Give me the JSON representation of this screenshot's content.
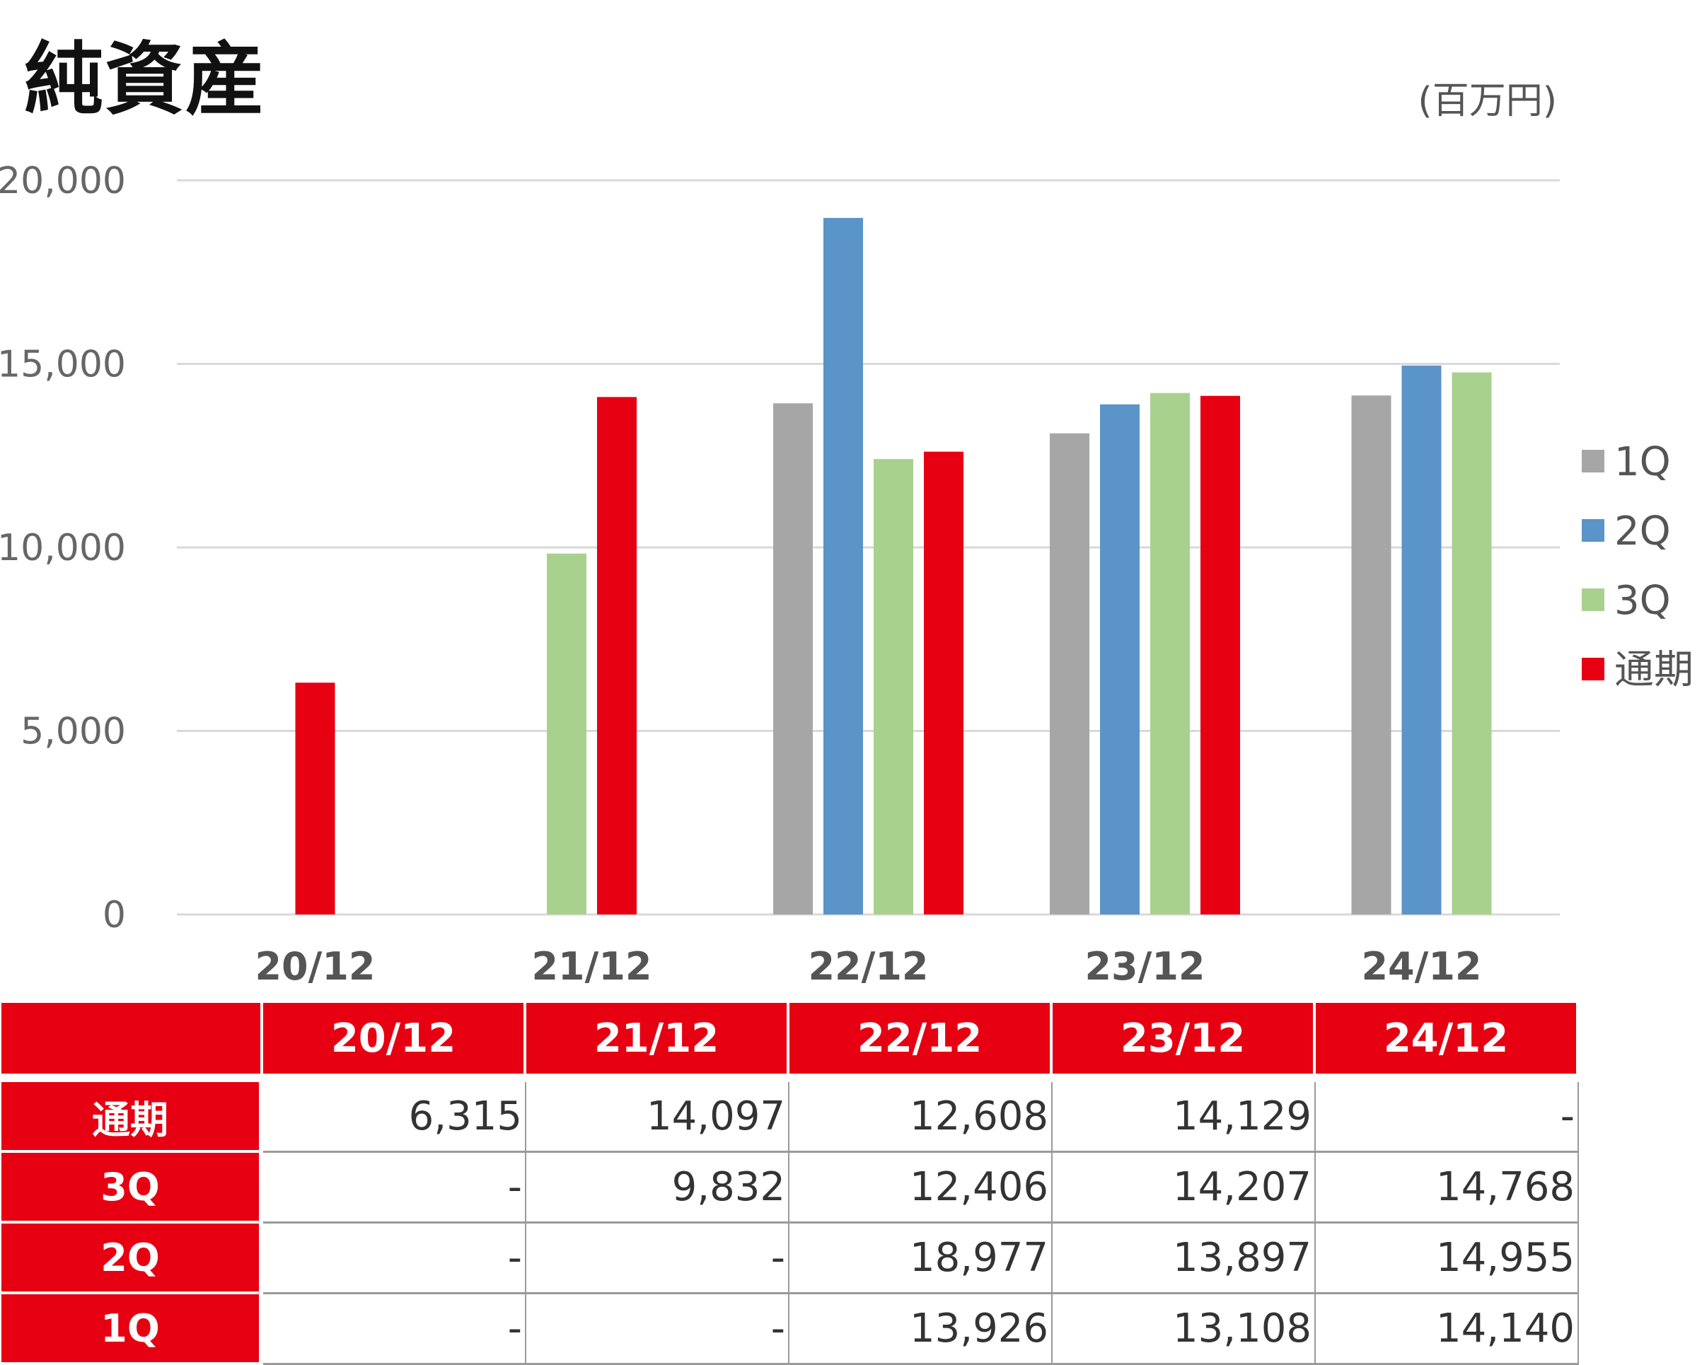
{
  "title": "純資産",
  "unit": "(百万円)",
  "chart_data": {
    "type": "bar",
    "title": "純資産",
    "unit": "(百万円)",
    "categories": [
      "20/12",
      "21/12",
      "22/12",
      "23/12",
      "24/12"
    ],
    "series": [
      {
        "name": "1Q",
        "color": "#a6a6a6",
        "values": [
          null,
          null,
          13926,
          13108,
          14140
        ]
      },
      {
        "name": "2Q",
        "color": "#5b94c8",
        "values": [
          null,
          null,
          18977,
          13897,
          14955
        ]
      },
      {
        "name": "3Q",
        "color": "#a9d18e",
        "values": [
          null,
          9832,
          12406,
          14207,
          14768
        ]
      },
      {
        "name": "通期",
        "color": "#e60012",
        "values": [
          6315,
          14097,
          12608,
          14129,
          null
        ]
      }
    ],
    "y_ticks": [
      "0",
      "5,000",
      "10,000",
      "15,000",
      "20,000"
    ],
    "ylim": [
      0,
      20000
    ],
    "grid": true,
    "legend": "right"
  },
  "table": {
    "header": [
      "20/12",
      "21/12",
      "22/12",
      "23/12",
      "24/12"
    ],
    "rows": [
      {
        "label": "通期",
        "cells": [
          "6,315",
          "14,097",
          "12,608",
          "14,129",
          "-"
        ]
      },
      {
        "label": "3Q",
        "cells": [
          "-",
          "9,832",
          "12,406",
          "14,207",
          "14,768"
        ]
      },
      {
        "label": "2Q",
        "cells": [
          "-",
          "-",
          "18,977",
          "13,897",
          "14,955"
        ]
      },
      {
        "label": "1Q",
        "cells": [
          "-",
          "-",
          "13,926",
          "13,108",
          "14,140"
        ]
      }
    ]
  }
}
